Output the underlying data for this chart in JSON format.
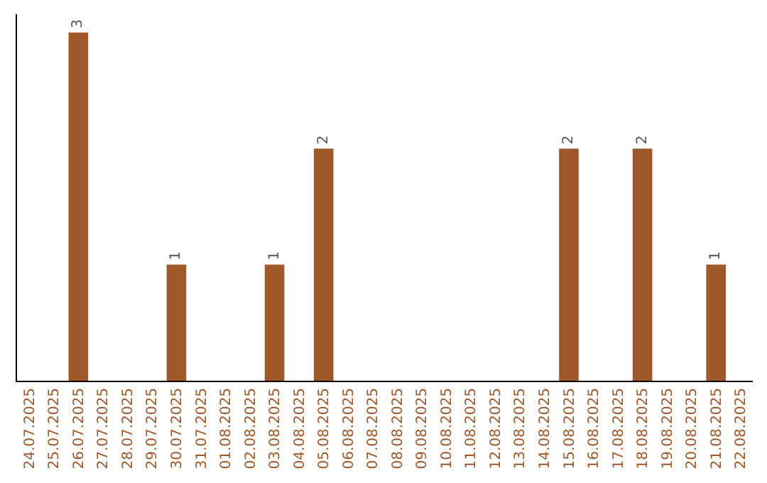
{
  "chart_data": {
    "type": "bar",
    "categories": [
      "24.07.2025",
      "25.07.2025",
      "26.07.2025",
      "27.07.2025",
      "28.07.2025",
      "29.07.2025",
      "30.07.2025",
      "31.07.2025",
      "01.08.2025",
      "02.08.2025",
      "03.08.2025",
      "04.08.2025",
      "05.08.2025",
      "06.08.2025",
      "07.08.2025",
      "08.08.2025",
      "09.08.2025",
      "10.08.2025",
      "11.08.2025",
      "12.08.2025",
      "13.08.2025",
      "14.08.2025",
      "15.08.2025",
      "16.08.2025",
      "17.08.2025",
      "18.08.2025",
      "19.08.2025",
      "20.08.2025",
      "21.08.2025",
      "22.08.2025"
    ],
    "values": [
      0,
      0,
      3,
      0,
      0,
      0,
      1,
      0,
      0,
      0,
      1,
      0,
      2,
      0,
      0,
      0,
      0,
      0,
      0,
      0,
      0,
      0,
      2,
      0,
      0,
      2,
      0,
      0,
      1,
      0
    ],
    "value_labels": [
      null,
      null,
      "3",
      null,
      null,
      null,
      "1",
      null,
      null,
      null,
      "1",
      null,
      "2",
      null,
      null,
      null,
      null,
      null,
      null,
      null,
      null,
      null,
      "2",
      null,
      null,
      "2",
      null,
      null,
      "1",
      null
    ],
    "color": "#a0572a",
    "tick_labels": "x",
    "grid": false,
    "legend": false
  }
}
